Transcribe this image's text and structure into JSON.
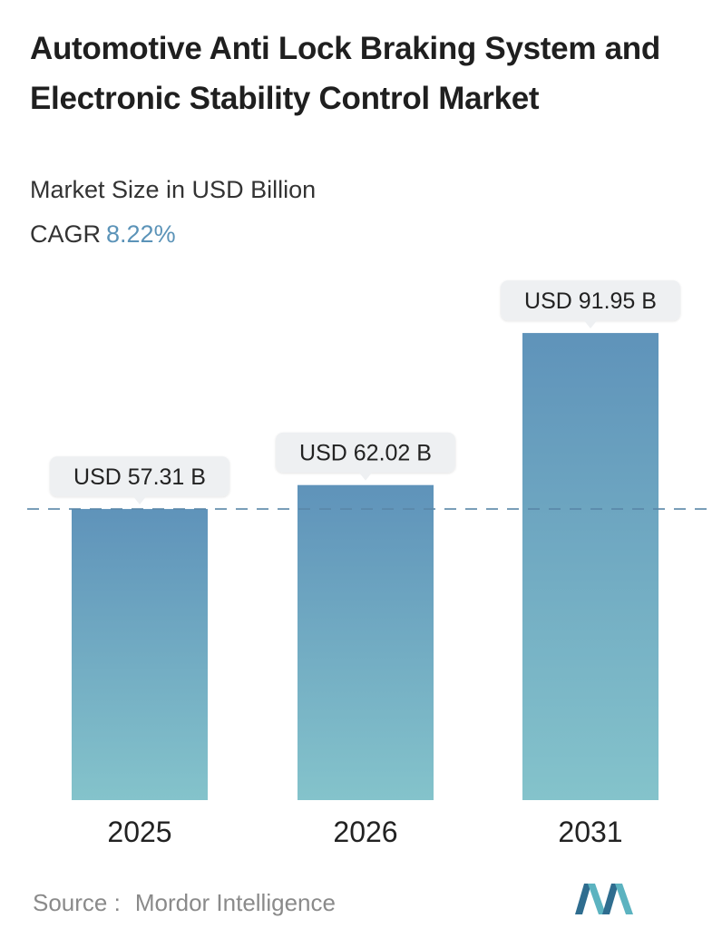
{
  "title": "Automotive Anti Lock Braking System and Electronic Stability Control Market",
  "subtitle": "Market Size in USD Billion",
  "cagr": {
    "label": "CAGR",
    "value": "8.22%"
  },
  "source": {
    "label": "Source :",
    "name": "Mordor Intelligence"
  },
  "colors": {
    "bar_top": "#5f93ba",
    "bar_bottom": "#84c3cb",
    "callout_bg": "#eef0f2",
    "reference_line": "#5a87a8",
    "logo_dark": "#2f6d8f",
    "logo_light": "#5cb3c0"
  },
  "chart_data": {
    "type": "bar",
    "categories": [
      "2025",
      "2026",
      "2031"
    ],
    "values": [
      57.31,
      62.02,
      91.95
    ],
    "value_labels": [
      "USD 57.31 B",
      "USD 62.02 B",
      "USD 91.95 B"
    ],
    "reference_line": "dashed line at first value",
    "title": "",
    "xlabel": "",
    "ylabel": ""
  }
}
